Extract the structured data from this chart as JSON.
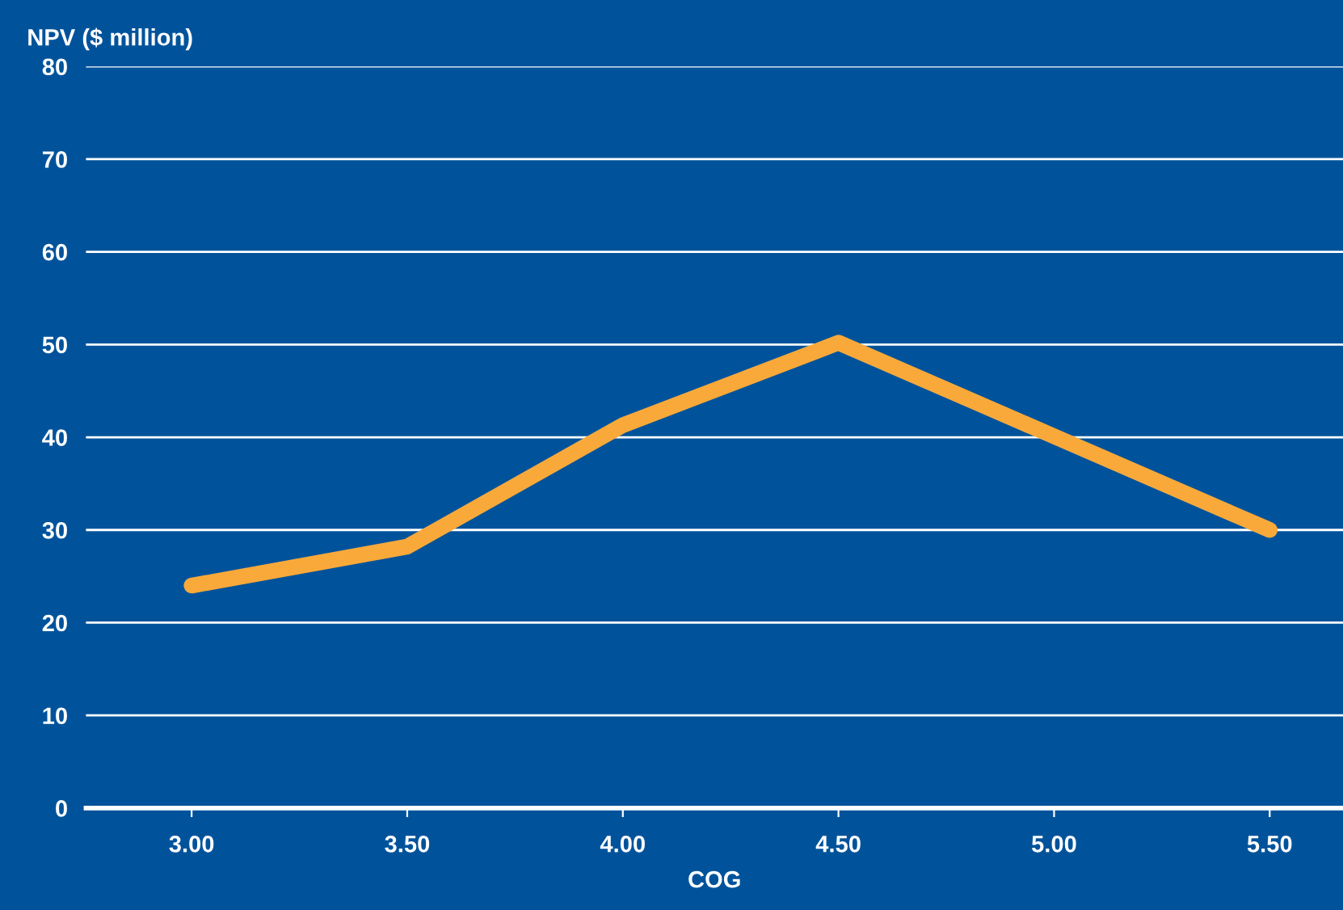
{
  "chart_data": {
    "type": "line",
    "xlabel": "COG",
    "ylabel": "NPV ($ million)",
    "categories": [
      "3.00",
      "3.50",
      "4.00",
      "4.50",
      "5.00",
      "5.50"
    ],
    "series": [
      {
        "color": "#f9a93a",
        "values": [
          24,
          28.2,
          41.3,
          50.2,
          40.1,
          30
        ]
      }
    ],
    "ylim": [
      0,
      80
    ],
    "yticks": [
      0,
      10,
      20,
      30,
      40,
      50,
      60,
      70,
      80
    ],
    "grid": "y",
    "marker": "none",
    "line_style": "solid"
  }
}
